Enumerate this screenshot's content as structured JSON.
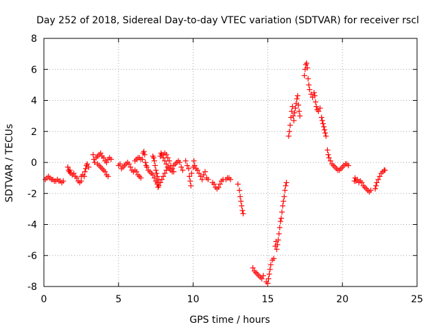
{
  "chart_data": {
    "type": "scatter",
    "title": "Day 252 of 2018, Sidereal Day-to-day VTEC variation (SDTVAR) for receiver rscl",
    "xlabel": "GPS time / hours",
    "ylabel": "SDTVAR / TECUs",
    "xlim": [
      0,
      25
    ],
    "ylim": [
      -8,
      8
    ],
    "xticks": [
      0,
      5,
      10,
      15,
      20,
      25
    ],
    "yticks": [
      -8,
      -6,
      -4,
      -2,
      0,
      2,
      4,
      6,
      8
    ],
    "grid": true,
    "marker": "+",
    "color": "#ff0000",
    "series": [
      {
        "name": "SDTVAR",
        "points": [
          [
            0.1,
            -1.1
          ],
          [
            0.2,
            -1.0
          ],
          [
            0.3,
            -0.9
          ],
          [
            0.4,
            -1.0
          ],
          [
            0.5,
            -1.1
          ],
          [
            0.6,
            -1.1
          ],
          [
            0.7,
            -1.2
          ],
          [
            0.8,
            -1.2
          ],
          [
            0.9,
            -1.1
          ],
          [
            1.0,
            -1.2
          ],
          [
            1.1,
            -1.2
          ],
          [
            1.2,
            -1.3
          ],
          [
            1.3,
            -1.2
          ],
          [
            1.6,
            -0.3
          ],
          [
            1.65,
            -0.5
          ],
          [
            1.7,
            -0.6
          ],
          [
            1.75,
            -0.5
          ],
          [
            1.8,
            -0.7
          ],
          [
            1.9,
            -0.8
          ],
          [
            2.0,
            -0.7
          ],
          [
            2.1,
            -0.9
          ],
          [
            2.2,
            -1.0
          ],
          [
            2.3,
            -1.2
          ],
          [
            2.4,
            -1.3
          ],
          [
            2.5,
            -1.2
          ],
          [
            2.5,
            -0.9
          ],
          [
            2.6,
            -0.8
          ],
          [
            2.7,
            -0.9
          ],
          [
            2.75,
            -0.6
          ],
          [
            2.8,
            -0.4
          ],
          [
            2.85,
            -0.2
          ],
          [
            2.9,
            -0.1
          ],
          [
            3.0,
            -0.3
          ],
          [
            3.3,
            0.5
          ],
          [
            3.35,
            0.2
          ],
          [
            3.4,
            0.0
          ],
          [
            3.5,
            0.3
          ],
          [
            3.6,
            0.4
          ],
          [
            3.7,
            0.5
          ],
          [
            3.8,
            0.6
          ],
          [
            3.9,
            0.4
          ],
          [
            4.0,
            0.3
          ],
          [
            4.1,
            0.1
          ],
          [
            4.2,
            0.0
          ],
          [
            4.3,
            0.2
          ],
          [
            4.4,
            0.3
          ],
          [
            4.5,
            0.2
          ],
          [
            3.6,
            -0.1
          ],
          [
            3.7,
            -0.2
          ],
          [
            3.8,
            -0.3
          ],
          [
            3.9,
            -0.4
          ],
          [
            4.0,
            -0.5
          ],
          [
            4.1,
            -0.6
          ],
          [
            4.2,
            -0.8
          ],
          [
            4.3,
            -0.9
          ],
          [
            5.0,
            -0.2
          ],
          [
            5.1,
            -0.1
          ],
          [
            5.2,
            -0.4
          ],
          [
            5.3,
            -0.3
          ],
          [
            5.4,
            -0.2
          ],
          [
            5.5,
            -0.1
          ],
          [
            5.6,
            0.0
          ],
          [
            5.7,
            -0.1
          ],
          [
            5.8,
            -0.3
          ],
          [
            5.9,
            -0.5
          ],
          [
            6.0,
            -0.6
          ],
          [
            6.1,
            0.1
          ],
          [
            6.2,
            0.2
          ],
          [
            6.3,
            0.3
          ],
          [
            6.4,
            0.3
          ],
          [
            6.5,
            0.2
          ],
          [
            6.1,
            -0.5
          ],
          [
            6.2,
            -0.6
          ],
          [
            6.3,
            -0.8
          ],
          [
            6.4,
            -0.9
          ],
          [
            6.5,
            -1.0
          ],
          [
            6.6,
            0.2
          ],
          [
            6.65,
            0.6
          ],
          [
            6.7,
            0.7
          ],
          [
            6.75,
            0.5
          ],
          [
            6.8,
            0.0
          ],
          [
            6.85,
            -0.2
          ],
          [
            6.9,
            -0.3
          ],
          [
            7.0,
            -0.5
          ],
          [
            7.1,
            -0.6
          ],
          [
            7.2,
            -0.7
          ],
          [
            7.3,
            -0.8
          ],
          [
            7.4,
            -1.0
          ],
          [
            7.5,
            -1.2
          ],
          [
            7.6,
            -1.3
          ],
          [
            7.3,
            0.4
          ],
          [
            7.35,
            0.3
          ],
          [
            7.4,
            0.1
          ],
          [
            7.45,
            -0.2
          ],
          [
            7.5,
            -0.5
          ],
          [
            7.55,
            -0.7
          ],
          [
            7.6,
            -0.9
          ],
          [
            7.7,
            -1.1
          ],
          [
            7.6,
            -1.4
          ],
          [
            7.65,
            -1.6
          ],
          [
            7.7,
            -1.5
          ],
          [
            7.8,
            -1.3
          ],
          [
            7.9,
            -1.1
          ],
          [
            8.0,
            -0.9
          ],
          [
            8.1,
            -0.7
          ],
          [
            8.2,
            -0.5
          ],
          [
            8.3,
            -0.3
          ],
          [
            7.8,
            0.4
          ],
          [
            7.85,
            0.6
          ],
          [
            7.9,
            0.5
          ],
          [
            8.0,
            0.3
          ],
          [
            8.1,
            0.1
          ],
          [
            8.2,
            -0.1
          ],
          [
            8.3,
            -0.3
          ],
          [
            8.4,
            -0.4
          ],
          [
            8.5,
            -0.5
          ],
          [
            8.6,
            -0.6
          ],
          [
            8.0,
            0.5
          ],
          [
            8.1,
            0.6
          ],
          [
            8.2,
            0.5
          ],
          [
            8.3,
            0.3
          ],
          [
            8.4,
            0.1
          ],
          [
            8.5,
            -0.2
          ],
          [
            8.6,
            -0.4
          ],
          [
            8.7,
            -0.6
          ],
          [
            8.7,
            -0.2
          ],
          [
            8.8,
            -0.1
          ],
          [
            8.9,
            0.0
          ],
          [
            9.0,
            0.1
          ],
          [
            9.1,
            0.0
          ],
          [
            9.2,
            -0.3
          ],
          [
            9.3,
            -0.5
          ],
          [
            9.5,
            0.1
          ],
          [
            9.6,
            -0.2
          ],
          [
            9.7,
            -0.4
          ],
          [
            9.75,
            -0.9
          ],
          [
            9.8,
            -1.2
          ],
          [
            9.85,
            -1.5
          ],
          [
            9.9,
            -0.7
          ],
          [
            10.0,
            -0.3
          ],
          [
            10.05,
            0.1
          ],
          [
            10.1,
            -0.2
          ],
          [
            10.2,
            -0.4
          ],
          [
            10.3,
            -0.5
          ],
          [
            10.4,
            -0.7
          ],
          [
            10.5,
            -0.9
          ],
          [
            10.6,
            -1.1
          ],
          [
            10.7,
            -0.8
          ],
          [
            10.8,
            -0.6
          ],
          [
            10.9,
            -1.0
          ],
          [
            11.0,
            -1.1
          ],
          [
            11.3,
            -1.3
          ],
          [
            11.4,
            -1.4
          ],
          [
            11.5,
            -1.6
          ],
          [
            11.6,
            -1.7
          ],
          [
            11.7,
            -1.6
          ],
          [
            11.8,
            -1.4
          ],
          [
            11.9,
            -1.2
          ],
          [
            12.0,
            -1.1
          ],
          [
            12.2,
            -1.1
          ],
          [
            12.3,
            -1.0
          ],
          [
            12.4,
            -1.0
          ],
          [
            12.5,
            -1.1
          ],
          [
            13.0,
            -1.4
          ],
          [
            13.1,
            -1.8
          ],
          [
            13.15,
            -2.2
          ],
          [
            13.2,
            -2.5
          ],
          [
            13.25,
            -2.8
          ],
          [
            13.3,
            -3.1
          ],
          [
            13.35,
            -3.3
          ],
          [
            14.0,
            -6.8
          ],
          [
            14.1,
            -7.0
          ],
          [
            14.2,
            -7.1
          ],
          [
            14.3,
            -7.2
          ],
          [
            14.4,
            -7.3
          ],
          [
            14.5,
            -7.4
          ],
          [
            14.6,
            -7.5
          ],
          [
            14.7,
            -7.3
          ],
          [
            14.9,
            -7.7
          ],
          [
            15.0,
            -7.8
          ],
          [
            15.05,
            -7.5
          ],
          [
            15.1,
            -7.2
          ],
          [
            15.15,
            -6.9
          ],
          [
            15.2,
            -6.6
          ],
          [
            15.3,
            -6.3
          ],
          [
            15.4,
            -6.2
          ],
          [
            15.5,
            -5.4
          ],
          [
            15.55,
            -5.1
          ],
          [
            15.6,
            -5.6
          ],
          [
            15.65,
            -5.3
          ],
          [
            15.7,
            -5.0
          ],
          [
            15.75,
            -4.6
          ],
          [
            15.8,
            -4.2
          ],
          [
            15.85,
            -3.8
          ],
          [
            15.9,
            -3.6
          ],
          [
            15.95,
            -3.2
          ],
          [
            16.0,
            -2.8
          ],
          [
            16.05,
            -2.5
          ],
          [
            16.1,
            -2.2
          ],
          [
            16.15,
            -1.8
          ],
          [
            16.2,
            -1.5
          ],
          [
            16.25,
            -1.3
          ],
          [
            16.4,
            1.7
          ],
          [
            16.45,
            2.0
          ],
          [
            16.5,
            2.4
          ],
          [
            16.55,
            2.9
          ],
          [
            16.6,
            3.3
          ],
          [
            16.65,
            3.6
          ],
          [
            16.7,
            3.0
          ],
          [
            16.75,
            2.7
          ],
          [
            16.8,
            3.2
          ],
          [
            16.85,
            3.5
          ],
          [
            16.9,
            3.8
          ],
          [
            16.95,
            4.1
          ],
          [
            17.0,
            4.3
          ],
          [
            17.05,
            3.7
          ],
          [
            17.1,
            3.3
          ],
          [
            17.15,
            3.0
          ],
          [
            17.45,
            5.6
          ],
          [
            17.5,
            6.0
          ],
          [
            17.55,
            6.3
          ],
          [
            17.6,
            6.4
          ],
          [
            17.65,
            6.1
          ],
          [
            17.7,
            5.4
          ],
          [
            17.75,
            5.0
          ],
          [
            17.8,
            4.7
          ],
          [
            17.9,
            4.4
          ],
          [
            18.0,
            4.2
          ],
          [
            18.1,
            4.5
          ],
          [
            18.15,
            4.3
          ],
          [
            18.2,
            3.9
          ],
          [
            18.25,
            3.6
          ],
          [
            18.3,
            3.4
          ],
          [
            18.4,
            3.3
          ],
          [
            18.5,
            3.5
          ],
          [
            18.6,
            2.9
          ],
          [
            18.65,
            2.7
          ],
          [
            18.7,
            2.5
          ],
          [
            18.75,
            2.3
          ],
          [
            18.8,
            2.1
          ],
          [
            18.85,
            1.9
          ],
          [
            18.9,
            1.7
          ],
          [
            19.0,
            0.8
          ],
          [
            19.05,
            0.5
          ],
          [
            19.1,
            0.3
          ],
          [
            19.2,
            0.1
          ],
          [
            19.3,
            -0.1
          ],
          [
            19.4,
            -0.2
          ],
          [
            19.5,
            -0.3
          ],
          [
            19.6,
            -0.4
          ],
          [
            19.7,
            -0.5
          ],
          [
            19.8,
            -0.5
          ],
          [
            19.9,
            -0.4
          ],
          [
            20.0,
            -0.3
          ],
          [
            20.1,
            -0.2
          ],
          [
            20.2,
            -0.1
          ],
          [
            20.3,
            -0.1
          ],
          [
            20.4,
            -0.2
          ],
          [
            20.8,
            -1.2
          ],
          [
            20.85,
            -1.0
          ],
          [
            20.9,
            -1.2
          ],
          [
            21.0,
            -1.1
          ],
          [
            21.1,
            -1.3
          ],
          [
            21.2,
            -1.2
          ],
          [
            21.3,
            -1.3
          ],
          [
            21.4,
            -1.5
          ],
          [
            21.5,
            -1.6
          ],
          [
            21.6,
            -1.7
          ],
          [
            21.7,
            -1.8
          ],
          [
            21.8,
            -1.9
          ],
          [
            21.9,
            -1.8
          ],
          [
            22.2,
            -1.7
          ],
          [
            22.25,
            -1.5
          ],
          [
            22.3,
            -1.3
          ],
          [
            22.4,
            -1.1
          ],
          [
            22.5,
            -0.9
          ],
          [
            22.6,
            -0.7
          ],
          [
            22.7,
            -0.6
          ],
          [
            22.8,
            -0.5
          ],
          [
            22.85,
            -0.5
          ]
        ]
      }
    ]
  }
}
